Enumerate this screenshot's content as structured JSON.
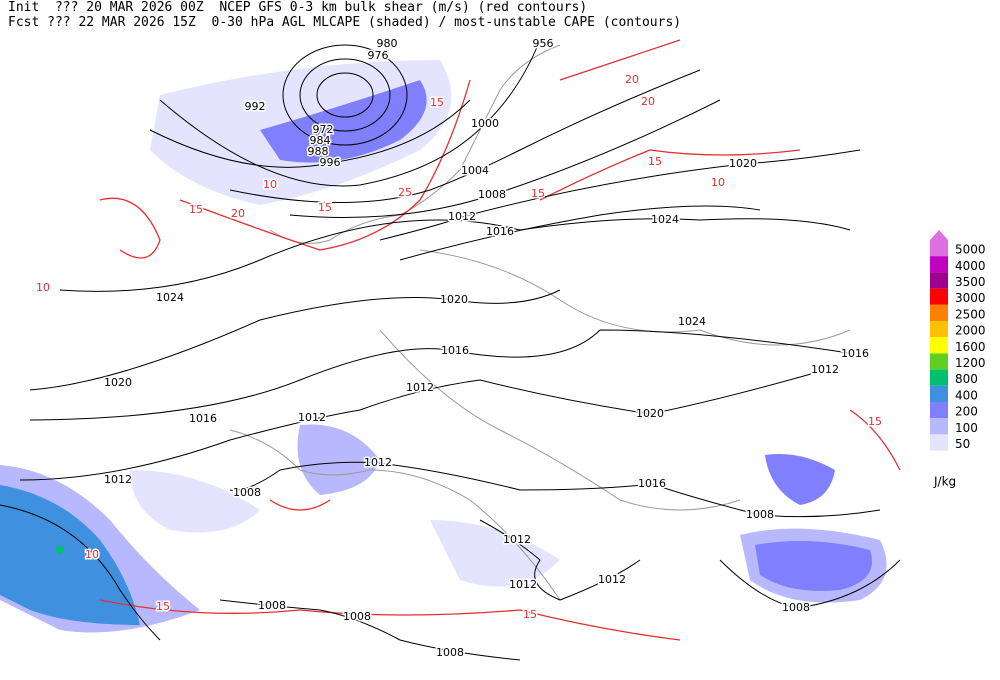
{
  "header": {
    "init": "Init  ??? 20 MAR 2026 00Z  NCEP GFS 0-3 km bulk shear (m/s) (red contours)",
    "forecast": "Fcst ??? 22 MAR 2026 15Z  0-30 hPa AGL MLCAPE (shaded) / most-unstable CAPE (contours)"
  },
  "legend": {
    "levels": [
      {
        "value": 5000,
        "color": "#e070e0"
      },
      {
        "value": 4000,
        "color": "#c000c0"
      },
      {
        "value": 3500,
        "color": "#a00090"
      },
      {
        "value": 3000,
        "color": "#ff0000"
      },
      {
        "value": 2500,
        "color": "#ff8000"
      },
      {
        "value": 2000,
        "color": "#ffc000"
      },
      {
        "value": 1600,
        "color": "#ffff00"
      },
      {
        "value": 1200,
        "color": "#60d020"
      },
      {
        "value": 800,
        "color": "#00c070"
      },
      {
        "value": 400,
        "color": "#4090e0"
      },
      {
        "value": 200,
        "color": "#8080ff"
      },
      {
        "value": 100,
        "color": "#b8b8ff"
      },
      {
        "value": 50,
        "color": "#e4e4ff"
      }
    ],
    "unit": "J/kg"
  },
  "isobar_labels": [
    980,
    976,
    956,
    992,
    972,
    984,
    988,
    996,
    1000,
    1004,
    1008,
    1012,
    1016,
    1020,
    1024,
    1024,
    1020,
    1024,
    1016,
    1016,
    1020,
    1012,
    1012,
    1016,
    1012,
    1020,
    1012,
    1012,
    1008,
    1016,
    1008,
    1012,
    1012,
    1012,
    1008,
    1008,
    1008,
    1008
  ],
  "shear_labels": [
    20,
    20,
    15,
    15,
    10,
    15,
    20,
    15,
    25,
    15,
    10,
    10,
    10,
    15,
    15,
    15
  ]
}
